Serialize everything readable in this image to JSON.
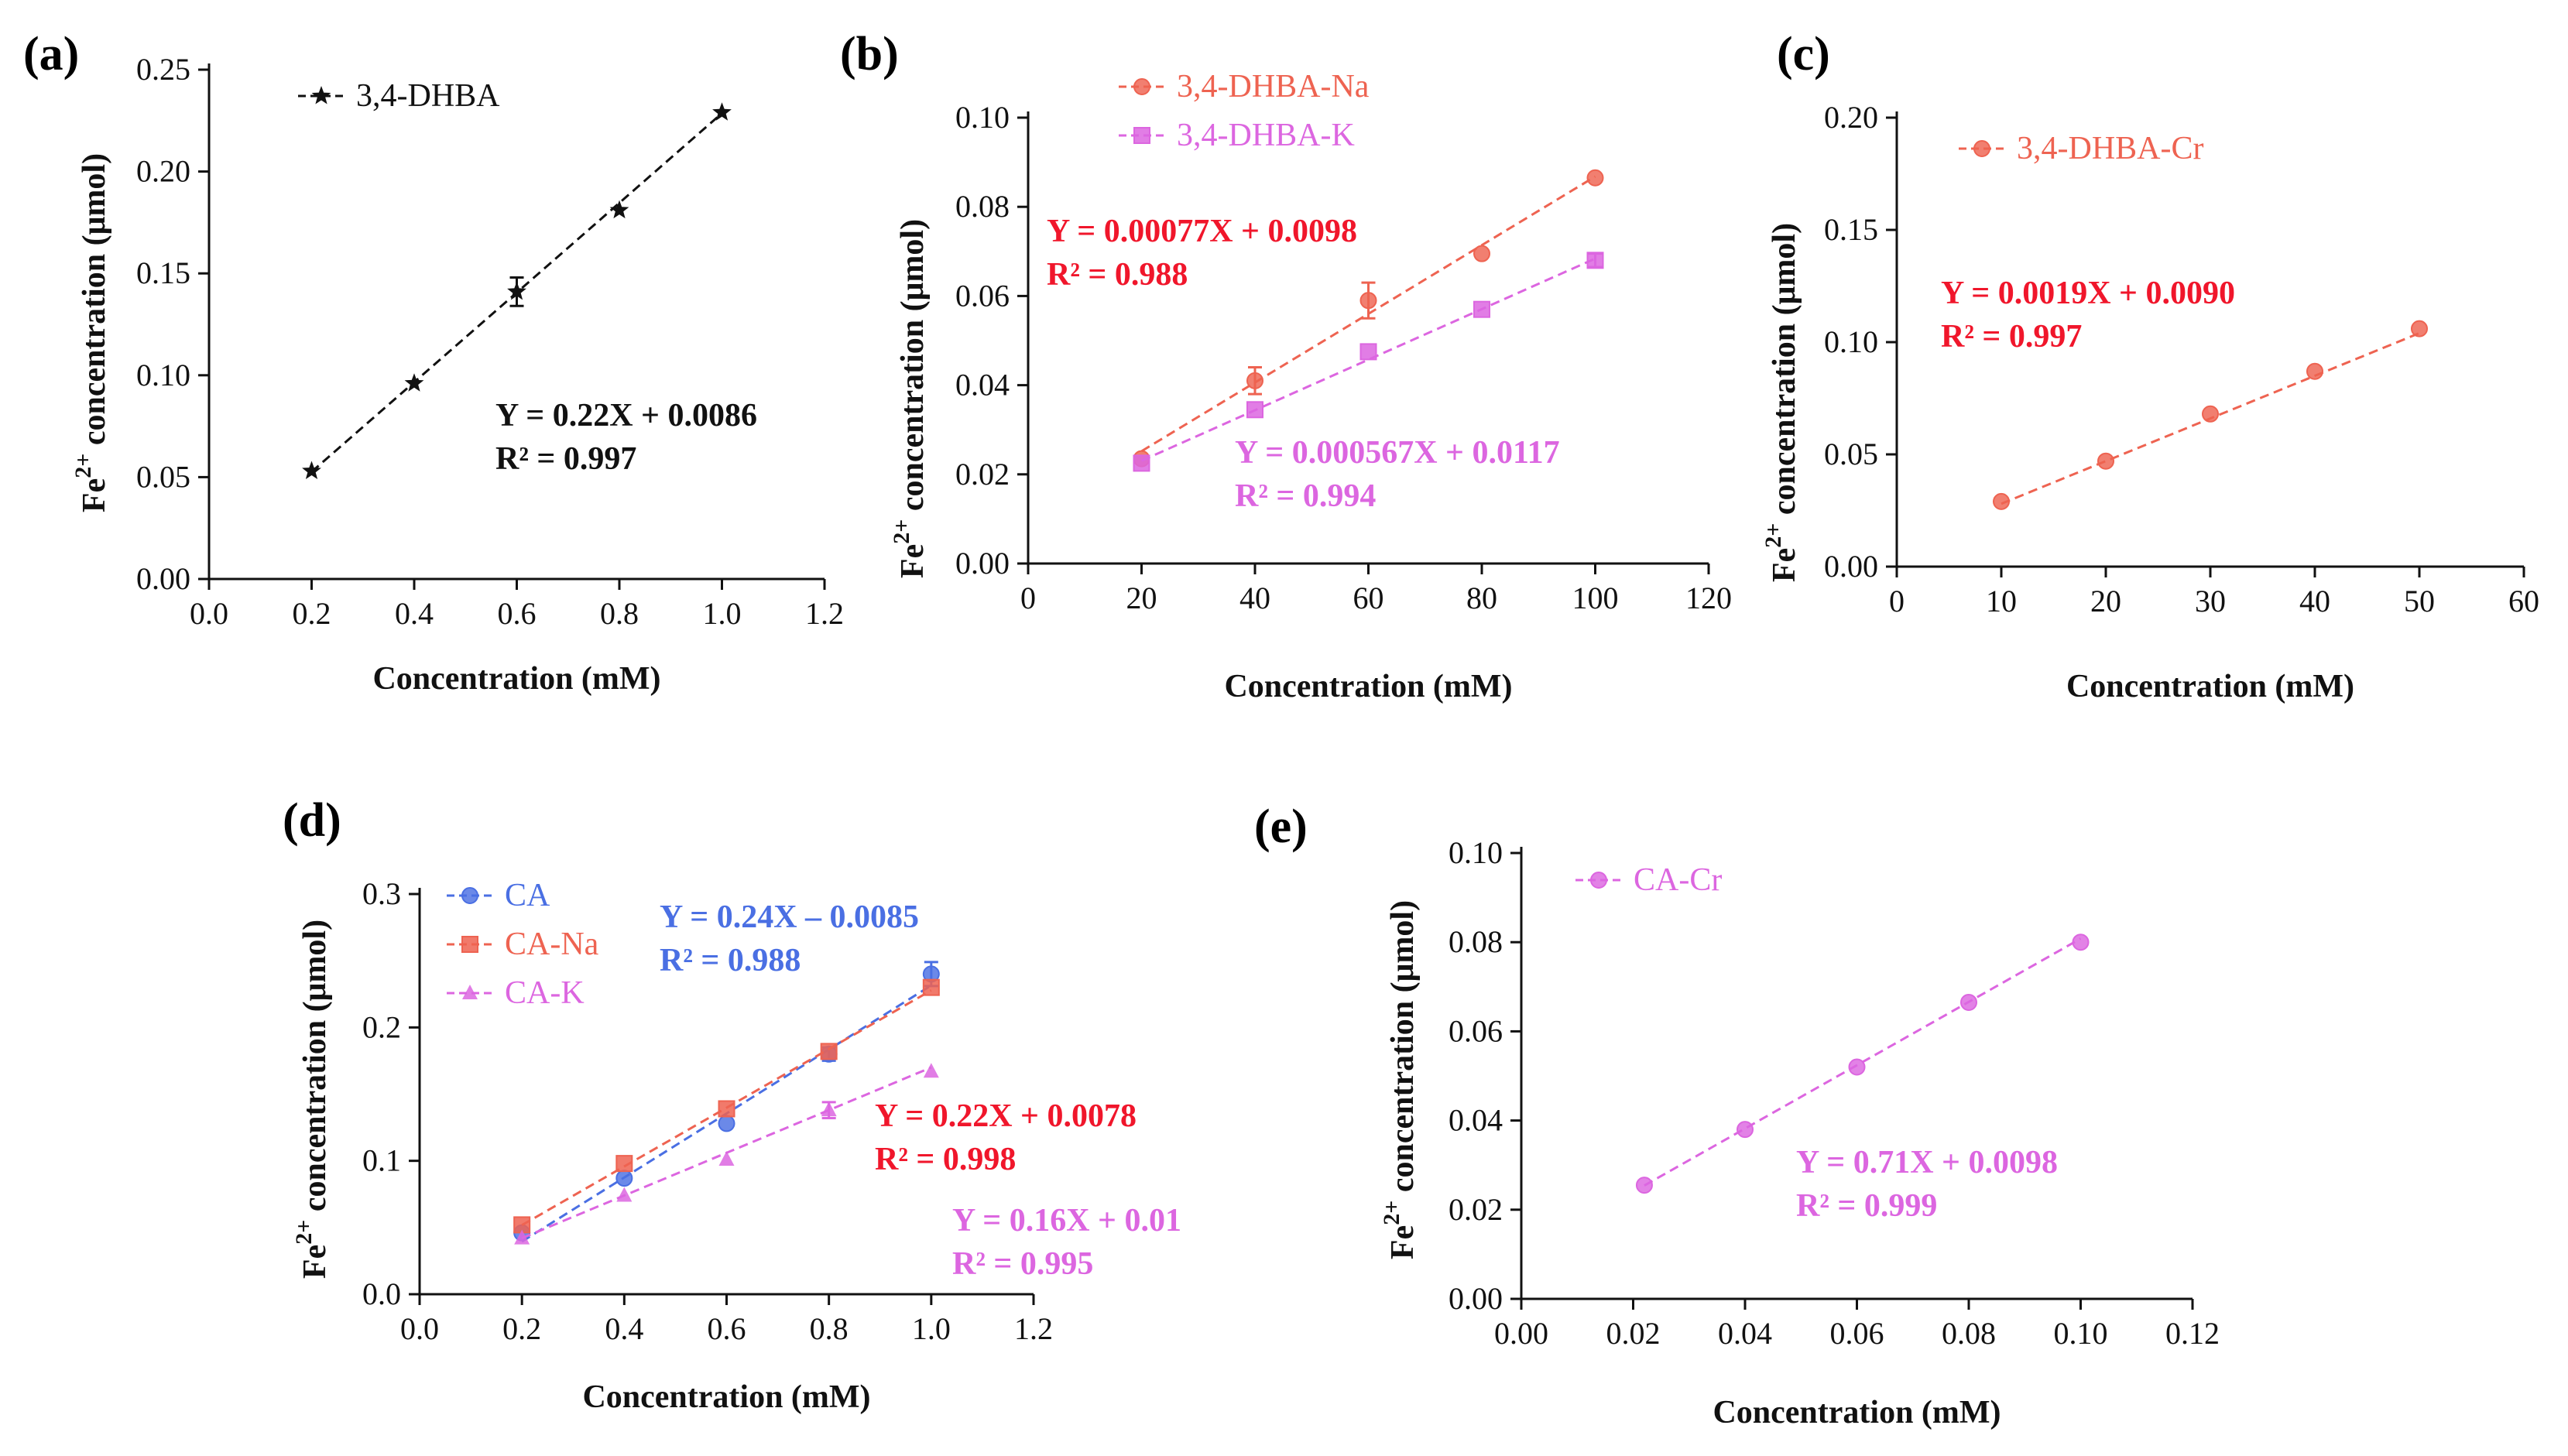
{
  "figure": {
    "colors": {
      "black": "#111111",
      "na": "#ee6351",
      "red": "#f0162b",
      "k": "#dc66e0",
      "ca": "#4a6fe3"
    },
    "chart_data": [
      {
        "panel": "(a)",
        "type": "scatter",
        "xlabel": "Concentration (mM)",
        "ylabel_main": "Fe",
        "ylabel_sup": "2+",
        "ylabel_rest": " concentration (μmol)",
        "xlim": [
          0,
          1.2
        ],
        "ylim": [
          0,
          0.25
        ],
        "xticks": [
          "0.0",
          "0.2",
          "0.4",
          "0.6",
          "0.8",
          "1.0",
          "1.2"
        ],
        "yticks": [
          "0.00",
          "0.05",
          "0.10",
          "0.15",
          "0.20",
          "0.25"
        ],
        "series": [
          {
            "name": "3,4-DHBA",
            "marker": "star",
            "color": "#111111",
            "x": [
              0.2,
              0.4,
              0.6,
              0.8,
              1.0
            ],
            "y": [
              0.053,
              0.096,
              0.141,
              0.181,
              0.229
            ],
            "err": [
              0,
              0,
              0.007,
              0,
              0
            ],
            "fit": [
              0.22,
              0.0086
            ],
            "equation": "Y = 0.22X + 0.0086",
            "r2": "R² = 0.997"
          }
        ]
      },
      {
        "panel": "(b)",
        "type": "scatter",
        "xlabel": "Concentration (mM)",
        "ylabel_main": "Fe",
        "ylabel_sup": "2+",
        "ylabel_rest": " concentration (μmol)",
        "xlim": [
          0,
          120
        ],
        "ylim": [
          0,
          0.1
        ],
        "xticks": [
          "0",
          "20",
          "40",
          "60",
          "80",
          "100",
          "120"
        ],
        "yticks": [
          "0.00",
          "0.02",
          "0.04",
          "0.06",
          "0.08",
          "0.10"
        ],
        "series": [
          {
            "name": "3,4-DHBA-Na",
            "marker": "circle",
            "color": "#ee6351",
            "x": [
              20,
              40,
              60,
              80,
              100
            ],
            "y": [
              0.0235,
              0.041,
              0.059,
              0.0695,
              0.0865
            ],
            "err": [
              0,
              0.003,
              0.004,
              0,
              0
            ],
            "fit": [
              0.00077,
              0.0098
            ],
            "equation": "Y = 0.00077X + 0.0098",
            "r2": "R² = 0.988",
            "eq_color": "#f0162b"
          },
          {
            "name": "3,4-DHBA-K",
            "marker": "square",
            "color": "#dc66e0",
            "x": [
              20,
              40,
              60,
              80,
              100
            ],
            "y": [
              0.0225,
              0.0345,
              0.0475,
              0.057,
              0.068
            ],
            "err": [
              0,
              0,
              0,
              0,
              0.0015
            ],
            "fit": [
              0.000567,
              0.0117
            ],
            "equation": "Y = 0.000567X + 0.0117",
            "r2": "R² = 0.994",
            "eq_color": "#dc66e0"
          }
        ]
      },
      {
        "panel": "(c)",
        "type": "scatter",
        "xlabel": "Concentration (mM)",
        "ylabel_main": "Fe",
        "ylabel_sup": "2+",
        "ylabel_rest": " concentration (μmol)",
        "xlim": [
          0,
          60
        ],
        "ylim": [
          0,
          0.2
        ],
        "xticks": [
          "0",
          "10",
          "20",
          "30",
          "40",
          "50",
          "60"
        ],
        "yticks": [
          "0.00",
          "0.05",
          "0.10",
          "0.15",
          "0.20"
        ],
        "series": [
          {
            "name": "3,4-DHBA-Cr",
            "marker": "circle",
            "color": "#ee6351",
            "x": [
              10,
              20,
              30,
              40,
              50
            ],
            "y": [
              0.029,
              0.047,
              0.068,
              0.087,
              0.106
            ],
            "err": [
              0,
              0,
              0,
              0,
              0
            ],
            "fit": [
              0.0019,
              0.009
            ],
            "equation": "Y = 0.0019X + 0.0090",
            "r2": "R² = 0.997",
            "eq_color": "#f0162b"
          }
        ]
      },
      {
        "panel": "(d)",
        "type": "scatter",
        "xlabel": "Concentration (mM)",
        "ylabel_main": "Fe",
        "ylabel_sup": "2+",
        "ylabel_rest": " concentration (μmol)",
        "xlim": [
          0,
          1.2
        ],
        "ylim": [
          0,
          0.3
        ],
        "xticks": [
          "0.0",
          "0.2",
          "0.4",
          "0.6",
          "0.8",
          "1.0",
          "1.2"
        ],
        "yticks": [
          "0.0",
          "0.1",
          "0.2",
          "0.3"
        ],
        "series": [
          {
            "name": "CA",
            "marker": "circle",
            "color": "#4a6fe3",
            "x": [
              0.2,
              0.4,
              0.6,
              0.8,
              1.0
            ],
            "y": [
              0.046,
              0.087,
              0.128,
              0.18,
              0.24
            ],
            "err": [
              0,
              0,
              0,
              0.005,
              0.009
            ],
            "fit": [
              0.24,
              -0.0085
            ],
            "equation": "Y = 0.24X – 0.0085",
            "r2": "R² = 0.988",
            "eq_color": "#4a6fe3"
          },
          {
            "name": "CA-Na",
            "marker": "square",
            "color": "#ee6351",
            "x": [
              0.2,
              0.4,
              0.6,
              0.8,
              1.0
            ],
            "y": [
              0.052,
              0.098,
              0.139,
              0.182,
              0.23
            ],
            "err": [
              0,
              0,
              0,
              0,
              0
            ],
            "fit": [
              0.22,
              0.0078
            ],
            "equation": "Y = 0.22X + 0.0078",
            "r2": "R² = 0.998",
            "eq_color": "#f0162b"
          },
          {
            "name": "CA-K",
            "marker": "triangle",
            "color": "#dc66e0",
            "x": [
              0.2,
              0.4,
              0.6,
              0.8,
              1.0
            ],
            "y": [
              0.042,
              0.074,
              0.101,
              0.138,
              0.167
            ],
            "err": [
              0,
              0,
              0,
              0.006,
              0
            ],
            "fit": [
              0.16,
              0.01
            ],
            "equation": "Y = 0.16X + 0.01",
            "r2": "R² = 0.995",
            "eq_color": "#dc66e0"
          }
        ]
      },
      {
        "panel": "(e)",
        "type": "scatter",
        "xlabel": "Concentration (mM)",
        "ylabel_main": "Fe",
        "ylabel_sup": "2+",
        "ylabel_rest": " concentration (μmol)",
        "xlim": [
          0,
          0.12
        ],
        "ylim": [
          0,
          0.1
        ],
        "xticks": [
          "0.00",
          "0.02",
          "0.04",
          "0.06",
          "0.08",
          "0.10",
          "0.12"
        ],
        "yticks": [
          "0.00",
          "0.02",
          "0.04",
          "0.06",
          "0.08",
          "0.10"
        ],
        "series": [
          {
            "name": "CA-Cr",
            "marker": "circle",
            "color": "#dc66e0",
            "x": [
              0.022,
              0.04,
              0.06,
              0.08,
              0.1
            ],
            "y": [
              0.0255,
              0.038,
              0.052,
              0.0665,
              0.08
            ],
            "err": [
              0,
              0,
              0,
              0,
              0
            ],
            "fit": [
              0.71,
              0.0098
            ],
            "equation": "Y = 0.71X + 0.0098",
            "r2": "R² = 0.999",
            "eq_color": "#dc66e0"
          }
        ]
      }
    ]
  }
}
